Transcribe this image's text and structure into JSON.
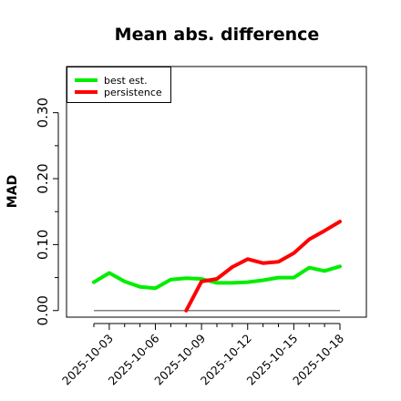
{
  "chart_data": {
    "type": "line",
    "title": "Mean abs. difference",
    "xlabel": "",
    "ylabel": "MAD",
    "ylim": [
      -0.01,
      0.37
    ],
    "yticks": [
      0.0,
      0.1,
      0.2,
      0.3
    ],
    "ytick_labels": [
      "0.00",
      "0.10",
      "0.20",
      "0.30"
    ],
    "x": [
      "2025-10-02",
      "2025-10-03",
      "2025-10-04",
      "2025-10-05",
      "2025-10-06",
      "2025-10-07",
      "2025-10-08",
      "2025-10-09",
      "2025-10-10",
      "2025-10-11",
      "2025-10-12",
      "2025-10-13",
      "2025-10-14",
      "2025-10-15",
      "2025-10-16",
      "2025-10-17",
      "2025-10-18"
    ],
    "xticks": [
      "2025-10-03",
      "2025-10-06",
      "2025-10-09",
      "2025-10-12",
      "2025-10-15",
      "2025-10-18"
    ],
    "series": [
      {
        "name": "best est.",
        "color": "#00ee00",
        "values": [
          0.043,
          0.057,
          0.044,
          0.036,
          0.034,
          0.047,
          0.049,
          0.048,
          0.042,
          0.042,
          0.043,
          0.046,
          0.05,
          0.05,
          0.065,
          0.06,
          0.067
        ]
      },
      {
        "name": "persistence",
        "color": "#ff0000",
        "values": [
          null,
          null,
          null,
          null,
          null,
          null,
          0.0,
          0.044,
          0.048,
          0.066,
          0.078,
          0.072,
          0.074,
          0.087,
          0.108,
          0.121,
          0.135
        ]
      }
    ],
    "hline": {
      "y": 0.0,
      "color": "#808080"
    },
    "grid": false,
    "legend_position": "top-left"
  }
}
